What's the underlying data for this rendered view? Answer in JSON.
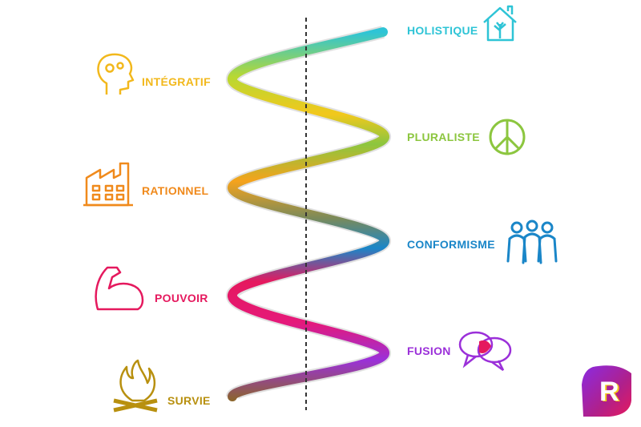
{
  "levels": [
    {
      "label": "HOLISTIQUE",
      "color": "#2ec4d6",
      "icon": "house-tree-icon"
    },
    {
      "label": "INTÉGRATIF",
      "color": "#f2b81c",
      "icon": "head-gears-icon"
    },
    {
      "label": "PLURALISTE",
      "color": "#8cc63f",
      "icon": "peace-icon"
    },
    {
      "label": "RATIONNEL",
      "color": "#f08a1c",
      "icon": "factory-icon"
    },
    {
      "label": "CONFORMISME",
      "color": "#1a86c8",
      "icon": "people-icon"
    },
    {
      "label": "POUVOIR",
      "color": "#e5195e",
      "icon": "flexed-arm-icon"
    },
    {
      "label": "FUSION",
      "color": "#9b30d9",
      "icon": "speech-bubbles-icon"
    },
    {
      "label": "SURVIE",
      "color": "#b8900f",
      "icon": "campfire-icon"
    }
  ],
  "logo": {
    "letter": "R",
    "icon": "logo-icon"
  }
}
